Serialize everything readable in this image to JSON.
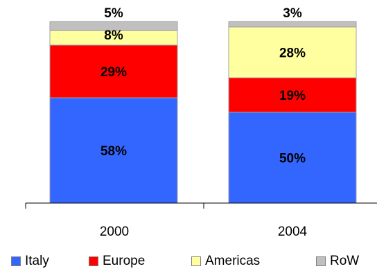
{
  "chart_data": {
    "type": "bar",
    "stacked": true,
    "percent": true,
    "categories": [
      "2000",
      "2004"
    ],
    "series": [
      {
        "name": "Italy",
        "color": "#3366ff",
        "values": [
          58,
          50
        ],
        "labels": [
          "58%",
          "50%"
        ]
      },
      {
        "name": "Europe",
        "color": "#ff0000",
        "values": [
          29,
          19
        ],
        "labels": [
          "29%",
          "19%"
        ]
      },
      {
        "name": "Americas",
        "color": "#ffffa0",
        "values": [
          8,
          28
        ],
        "labels": [
          "8%",
          "28%"
        ]
      },
      {
        "name": "RoW",
        "color": "#c0c0c0",
        "values": [
          5,
          3
        ],
        "labels": [
          "5%",
          "3%"
        ]
      }
    ],
    "ylim": [
      0,
      100
    ],
    "grid": false,
    "legend_position": "bottom"
  }
}
